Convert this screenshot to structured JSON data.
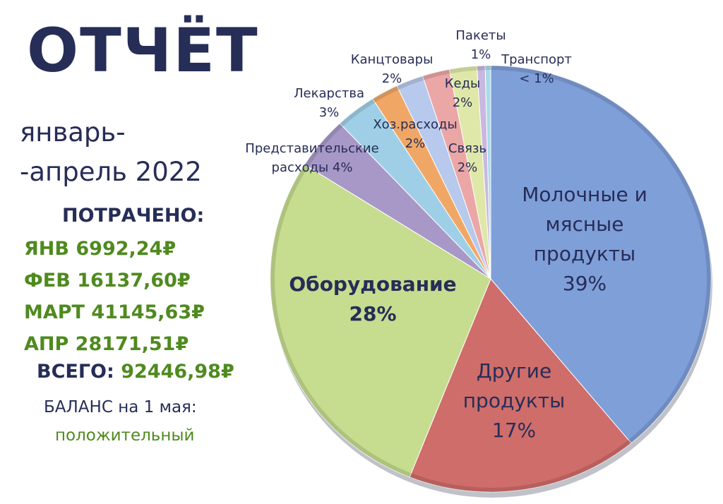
{
  "report": {
    "title": "ОТЧЁТ",
    "period_line1": "январь-",
    "period_line2": "-апрель 2022",
    "spent_heading": "ПОТРАЧЕНО:",
    "months": [
      {
        "label": "ЯНВ 6992,24₽"
      },
      {
        "label": "ФЕВ 16137,60₽"
      },
      {
        "label": "МАРТ 41145,63₽"
      },
      {
        "label": "АПР 28171,51₽"
      }
    ],
    "total_label": "ВСЕГО:",
    "total_value": "92446,98₽",
    "balance_label": "БАЛАНС на 1 мая:",
    "balance_value": "положительный"
  },
  "colors": {
    "title": "#262d57",
    "green": "#4f8a1f"
  },
  "chart_data": {
    "type": "pie",
    "title": "",
    "slices": [
      {
        "name": "Молочные и мясные продукты",
        "pct_label": "39%",
        "value": 39,
        "color": "#7f9fd9"
      },
      {
        "name": "Другие продукты",
        "pct_label": "17%",
        "value": 17,
        "color": "#cf6d6a"
      },
      {
        "name": "Оборудование",
        "pct_label": "28%",
        "value": 28,
        "color": "#c6dc8f"
      },
      {
        "name": "Представительские расходы",
        "pct_label": "4%",
        "value": 4,
        "color": "#a898c8"
      },
      {
        "name": "Лекарства",
        "pct_label": "3%",
        "value": 3,
        "color": "#9fcfe6"
      },
      {
        "name": "Хоз.расходы",
        "pct_label": "2%",
        "value": 2,
        "color": "#f0a766"
      },
      {
        "name": "Канцтовары",
        "pct_label": "2%",
        "value": 2,
        "color": "#b7c9ec"
      },
      {
        "name": "Кеды",
        "pct_label": "2%",
        "value": 2,
        "color": "#eaa7a6"
      },
      {
        "name": "Связь",
        "pct_label": "2%",
        "value": 2,
        "color": "#dfe8a8"
      },
      {
        "name": "Пакеты",
        "pct_label": "1%",
        "value": 0.6,
        "color": "#c8b8e0"
      },
      {
        "name": "Транспорт",
        "pct_label": "< 1%",
        "value": 0.4,
        "color": "#a8dbe8"
      }
    ]
  }
}
